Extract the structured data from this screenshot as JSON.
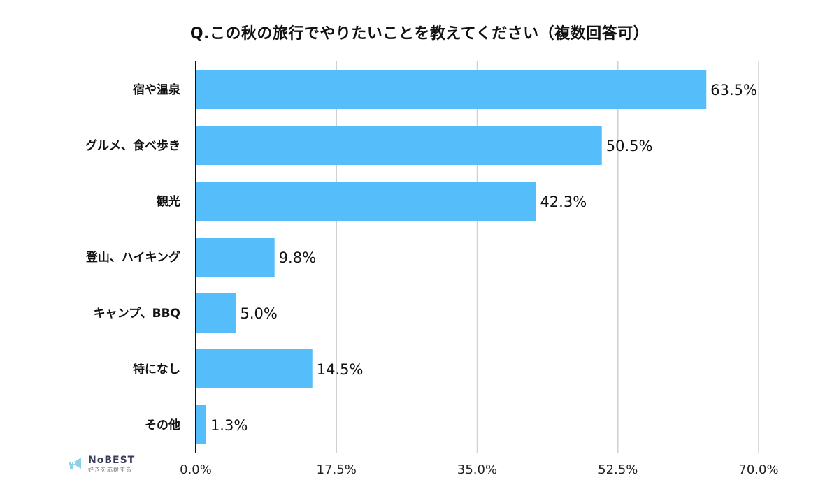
{
  "chart_data": {
    "type": "bar",
    "orientation": "horizontal",
    "title": "Q.この秋の旅行でやりたいことを教えてください（複数回答可）",
    "categories": [
      "宿や温泉",
      "グルメ、食べ歩き",
      "観光",
      "登山、ハイキング",
      "キャンプ、BBQ",
      "特になし",
      "その他"
    ],
    "values": [
      63.5,
      50.5,
      42.3,
      9.8,
      5.0,
      14.5,
      1.3
    ],
    "value_labels": [
      "63.5%",
      "50.5%",
      "42.3%",
      "9.8%",
      "5.0%",
      "14.5%",
      "1.3%"
    ],
    "xlim": [
      0,
      70
    ],
    "xticks": [
      0,
      17.5,
      35,
      52.5,
      70
    ],
    "xtick_labels": [
      "0.0%",
      "17.5%",
      "35.0%",
      "52.5%",
      "70.0%"
    ],
    "bar_color": "#55BDFA",
    "grid": true
  },
  "logo": {
    "text": "NoBEST",
    "sub": "好きを応援する"
  }
}
